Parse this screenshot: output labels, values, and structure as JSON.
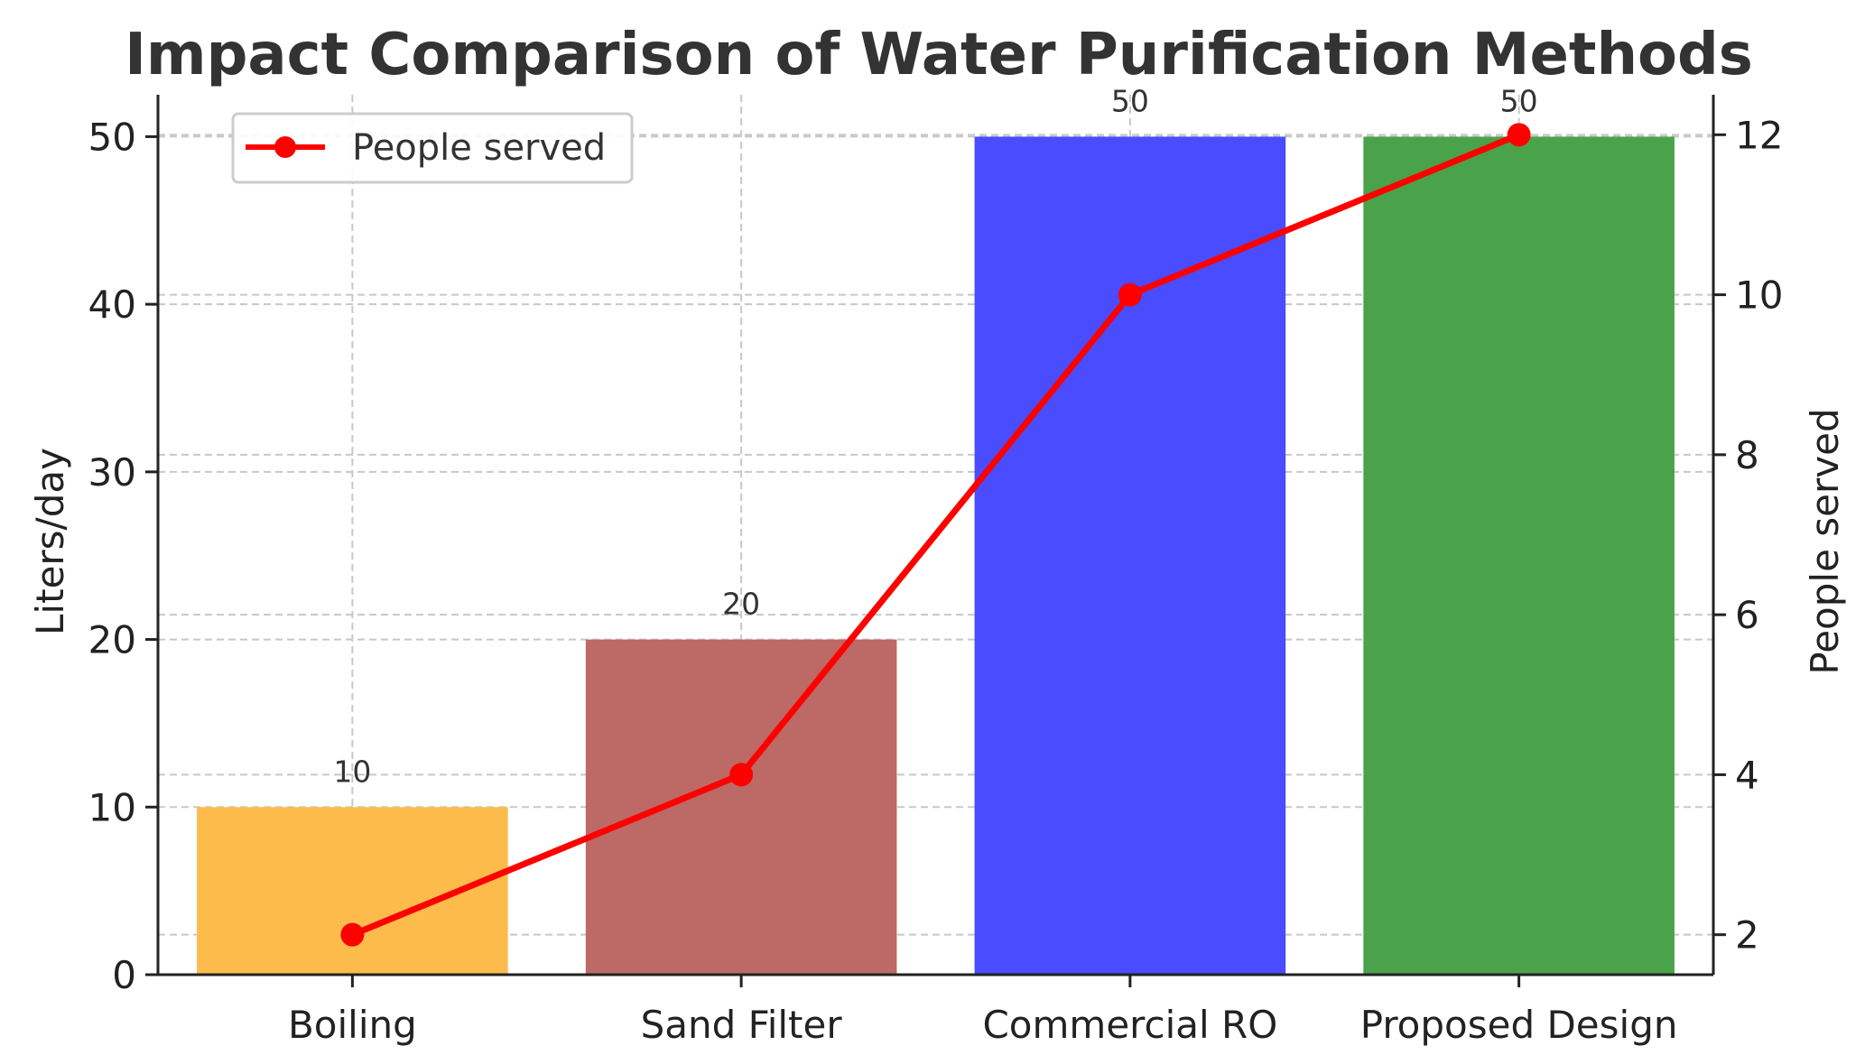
{
  "chart_data": {
    "type": "bar",
    "title": "Impact Comparison of Water Purification Methods",
    "xlabel": "",
    "ylabel": "Liters/day",
    "y2label": "People served",
    "categories": [
      "Boiling",
      "Sand Filter",
      "Commercial RO",
      "Proposed Design"
    ],
    "series": [
      {
        "type": "bar",
        "axis": "left",
        "values": [
          10,
          20,
          50,
          50
        ],
        "value_labels": [
          "10",
          "20",
          "50",
          "50"
        ],
        "colors": [
          "#fdbb4c",
          "#bd6966",
          "#4a4cff",
          "#4aa34a"
        ]
      },
      {
        "name": "People served",
        "type": "line",
        "axis": "right",
        "values": [
          2,
          4,
          10,
          12
        ],
        "color": "#ff0000",
        "marker": "circle"
      }
    ],
    "ylim": [
      0,
      52.5
    ],
    "yticks": [
      0,
      10,
      20,
      30,
      40,
      50
    ],
    "y2lim": [
      1.5,
      12.5
    ],
    "y2ticks": [
      2,
      4,
      6,
      8,
      10,
      12
    ],
    "grid": true,
    "legend": {
      "placement": "top-left",
      "entries": [
        "People served"
      ]
    }
  }
}
